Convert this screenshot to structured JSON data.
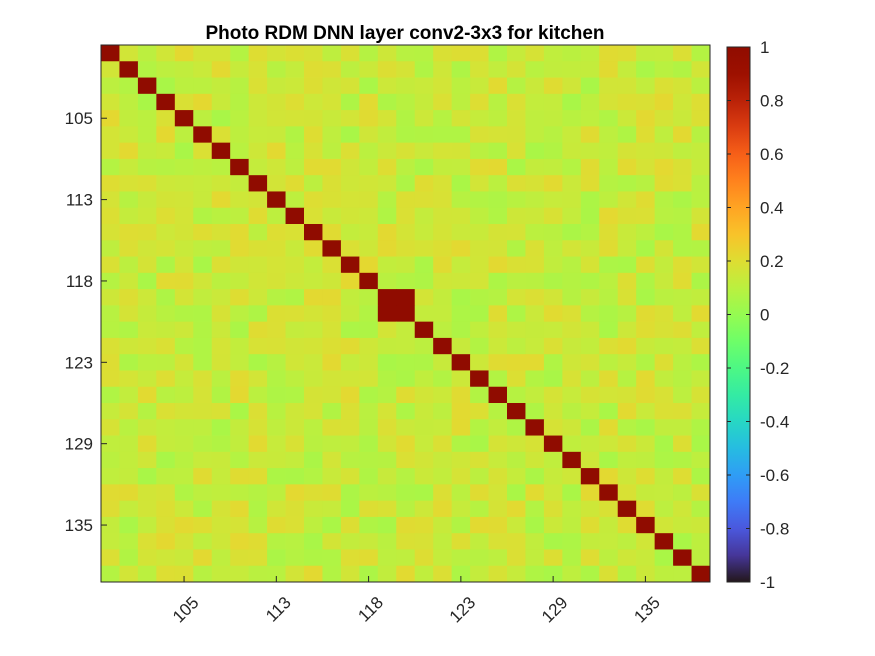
{
  "chart_data": {
    "type": "heatmap",
    "title": "Photo RDM DNN layer conv2-3x3 for kitchen",
    "xlabel": "",
    "ylabel": "",
    "n": 33,
    "x_ticks": [
      "105",
      "113",
      "118",
      "123",
      "129",
      "135"
    ],
    "y_ticks": [
      "105",
      "113",
      "118",
      "123",
      "129",
      "135"
    ],
    "colorbar": {
      "min": -1,
      "max": 1,
      "ticks": [
        "1",
        "0.8",
        "0.6",
        "0.4",
        "0.2",
        "0",
        "-0.2",
        "-0.4",
        "-0.6",
        "-0.8",
        "-1"
      ]
    },
    "colormap": "turbo",
    "diagonal_value": 1,
    "highlight_block": {
      "rows": [
        15,
        16
      ],
      "value": 1
    },
    "off_diagonal_range": [
      0.05,
      0.22
    ],
    "grid": false
  }
}
